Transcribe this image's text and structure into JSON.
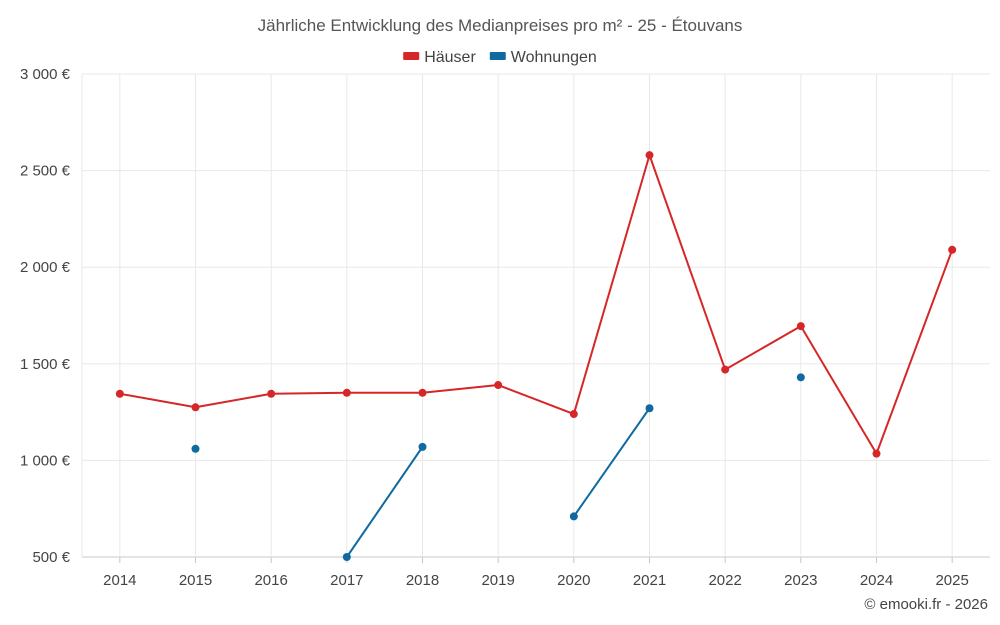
{
  "chart_data": {
    "type": "line",
    "title": "Jährliche Entwicklung des Medianpreises pro m² - 25 - Étouvans",
    "categories": [
      "2014",
      "2015",
      "2016",
      "2017",
      "2018",
      "2019",
      "2020",
      "2021",
      "2022",
      "2023",
      "2024",
      "2025"
    ],
    "y_tick_labels": [
      "500 €",
      "1 000 €",
      "1 500 €",
      "2 000 €",
      "2 500 €",
      "3 000 €"
    ],
    "y_tick_values": [
      500,
      1000,
      1500,
      2000,
      2500,
      3000
    ],
    "ylim": [
      500,
      3000
    ],
    "grid": true,
    "legend_position": "top-center",
    "series": [
      {
        "name": "Häuser",
        "color": "#d62728",
        "values": [
          1345,
          1275,
          1345,
          1350,
          1350,
          1390,
          1240,
          2580,
          1470,
          1695,
          1035,
          2090
        ]
      },
      {
        "name": "Wohnungen",
        "color": "#0f6aa0",
        "values": [
          null,
          1060,
          null,
          500,
          1070,
          null,
          710,
          1270,
          null,
          1430,
          null,
          null
        ]
      }
    ],
    "credit": "© emooki.fr - 2026"
  }
}
